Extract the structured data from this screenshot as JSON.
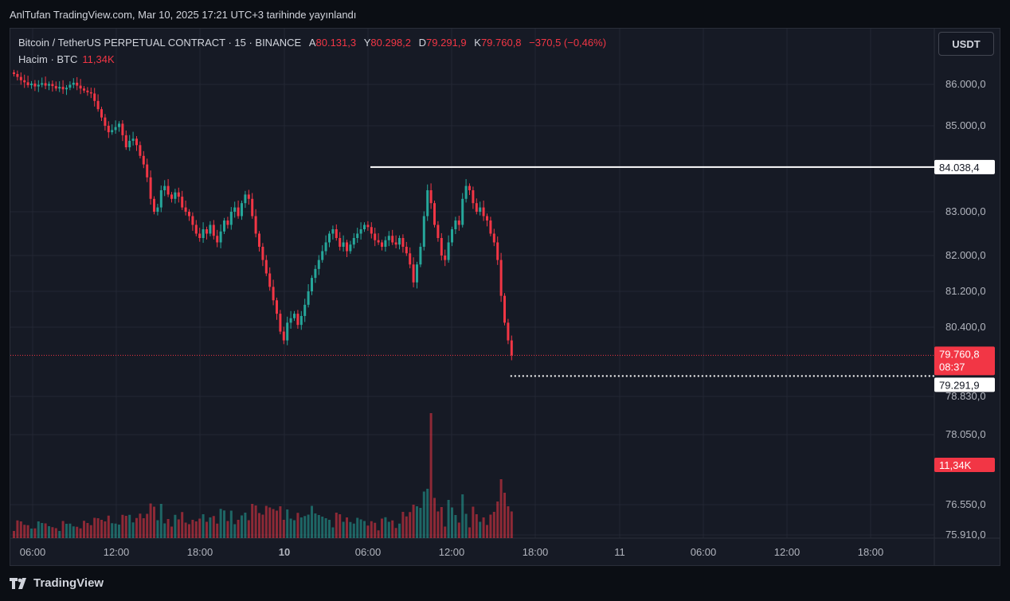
{
  "published": "AnlTufan TradingView.com, Mar 10, 2025 17:21 UTC+3 tarihinde yayınlandı",
  "legend": {
    "symbol": "Bitcoin / TetherUS PERPETUAL CONTRACT · 15 · BINANCE",
    "open_label": "A",
    "open": "80.131,3",
    "high_label": "Y",
    "high": "80.298,2",
    "low_label": "D",
    "low": "79.291,9",
    "close_label": "K",
    "close": "79.760,8",
    "change": "−370,5 (−0,46%)"
  },
  "volume_legend": {
    "label": "Hacim · BTC",
    "value": "11,34K"
  },
  "currency": "USDT",
  "footer": {
    "brand": "TradingView"
  },
  "colors": {
    "up": "#26a69a",
    "down": "#f23645",
    "background": "#161a25",
    "grid": "#232733"
  },
  "chart_data": {
    "type": "candlestick",
    "y_ticks": [
      "86.000,0",
      "85.000,0",
      "83.000,0",
      "82.000,0",
      "81.200,0",
      "80.400,0",
      "78.830,0",
      "78.050,0",
      "76.550,0",
      "75.910,0"
    ],
    "y_tick_values": [
      86000,
      85000,
      83000,
      82000,
      81200,
      80400,
      78830,
      78050,
      76550,
      75910
    ],
    "x_ticks": [
      "06:00",
      "12:00",
      "18:00",
      "10",
      "06:00",
      "12:00",
      "18:00",
      "11",
      "06:00",
      "12:00",
      "18:00"
    ],
    "x_tick_bold": [
      false,
      false,
      false,
      true,
      false,
      false,
      false,
      false,
      false,
      false,
      false
    ],
    "price_labels": {
      "high_line": "84.038,4",
      "last_price": "79.760,8",
      "countdown": "08:37",
      "low_line": "79.291,9",
      "volume": "11,34K"
    },
    "levels": {
      "high": 84038.4,
      "last": 79760.8,
      "low": 79291.9
    },
    "closes": [
      86250,
      86180,
      86100,
      86050,
      85980,
      86020,
      85950,
      85990,
      86030,
      85970,
      86010,
      85960,
      85900,
      85940,
      85880,
      85920,
      85990,
      86040,
      85970,
      85900,
      85850,
      85810,
      85780,
      85600,
      85400,
      85200,
      85000,
      84850,
      84900,
      84970,
      85050,
      84780,
      84500,
      84650,
      84700,
      84550,
      84300,
      84100,
      83800,
      83300,
      83000,
      83100,
      83500,
      83600,
      83400,
      83300,
      83450,
      83350,
      83100,
      83000,
      82900,
      82700,
      82500,
      82400,
      82600,
      82500,
      82700,
      82450,
      82300,
      82550,
      82800,
      82700,
      83000,
      83100,
      82900,
      83200,
      83400,
      83300,
      82900,
      82500,
      82200,
      81900,
      81600,
      81300,
      81000,
      80700,
      80300,
      80100,
      80500,
      80600,
      80700,
      80450,
      80650,
      80900,
      81200,
      81500,
      81700,
      81900,
      82100,
      82300,
      82500,
      82600,
      82400,
      82200,
      82300,
      82100,
      82250,
      82400,
      82500,
      82600,
      82700,
      82650,
      82500,
      82350,
      82300,
      82200,
      82350,
      82450,
      82300,
      82250,
      82400,
      82200,
      82050,
      81800,
      81400,
      81800,
      82200,
      82900,
      83500,
      83200,
      82700,
      82400,
      82000,
      81900,
      82300,
      82600,
      82800,
      82700,
      83300,
      83600,
      83500,
      83200,
      83000,
      83100,
      82900,
      82800,
      82500,
      82300,
      81900,
      81100,
      80500,
      80100,
      79760
    ]
  }
}
